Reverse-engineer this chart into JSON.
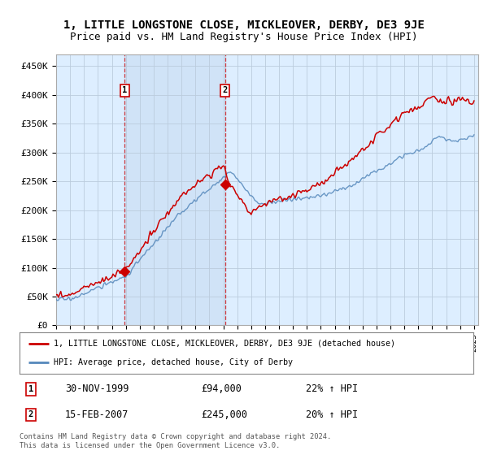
{
  "title": "1, LITTLE LONGSTONE CLOSE, MICKLEOVER, DERBY, DE3 9JE",
  "subtitle": "Price paid vs. HM Land Registry's House Price Index (HPI)",
  "title_fontsize": 10,
  "subtitle_fontsize": 9,
  "ylim": [
    0,
    470000
  ],
  "yticks": [
    0,
    50000,
    100000,
    150000,
    200000,
    250000,
    300000,
    350000,
    400000,
    450000
  ],
  "ytick_labels": [
    "£0",
    "£50K",
    "£100K",
    "£150K",
    "£200K",
    "£250K",
    "£300K",
    "£350K",
    "£400K",
    "£450K"
  ],
  "year_start": 1995,
  "year_end": 2025,
  "sale1_date": 1999.92,
  "sale1_price": 94000,
  "sale1_label": "1",
  "sale2_date": 2007.12,
  "sale2_price": 245000,
  "sale2_label": "2",
  "sale1_info": "30-NOV-1999",
  "sale1_amount": "£94,000",
  "sale1_hpi": "22% ↑ HPI",
  "sale2_info": "15-FEB-2007",
  "sale2_amount": "£245,000",
  "sale2_hpi": "20% ↑ HPI",
  "legend_line1": "1, LITTLE LONGSTONE CLOSE, MICKLEOVER, DERBY, DE3 9JE (detached house)",
  "legend_line2": "HPI: Average price, detached house, City of Derby",
  "footer": "Contains HM Land Registry data © Crown copyright and database right 2024.\nThis data is licensed under the Open Government Licence v3.0.",
  "red_color": "#cc0000",
  "blue_color": "#5588bb",
  "shade_color": "#ddeeff",
  "bg_color": "#ddeeff",
  "grid_color": "#bbccdd"
}
